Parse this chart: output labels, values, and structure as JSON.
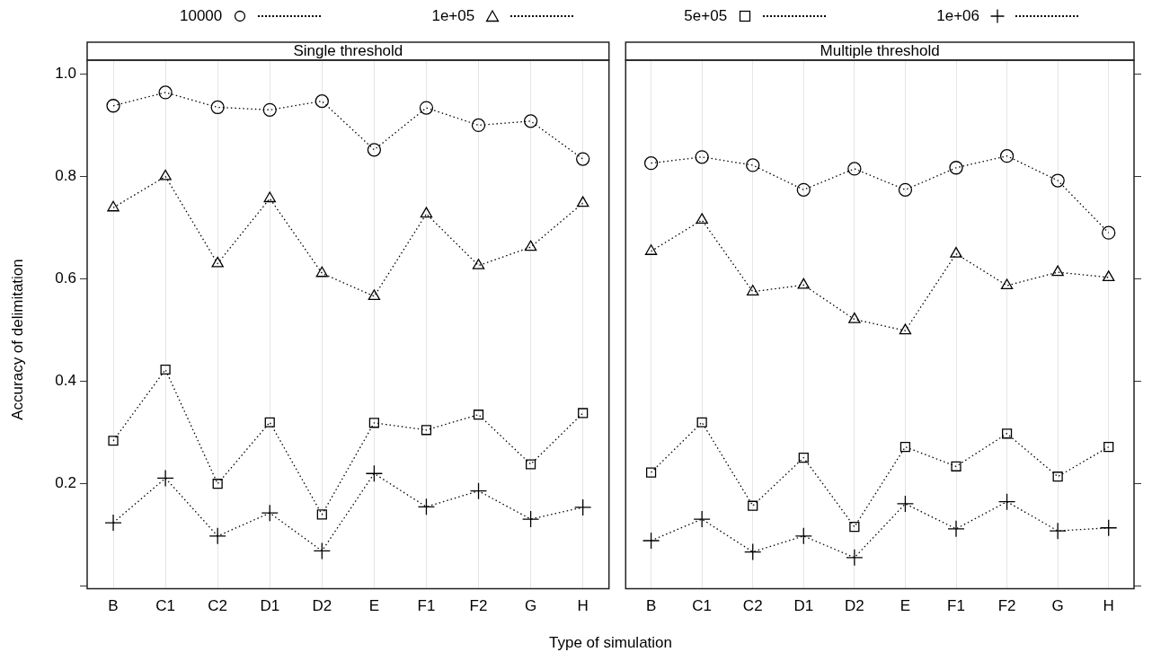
{
  "chart_data": [
    {
      "type": "line",
      "title": "Single threshold",
      "xlabel": "Type of simulation",
      "ylabel": "Accuracy of delimitation",
      "categories": [
        "B",
        "C1",
        "C2",
        "D1",
        "D2",
        "E",
        "F1",
        "F2",
        "G",
        "H"
      ],
      "series": [
        {
          "name": "10000",
          "color": "#000000",
          "marker": "circle",
          "values": [
            0.938,
            0.964,
            0.935,
            0.93,
            0.947,
            0.852,
            0.934,
            0.9,
            0.908,
            0.834
          ]
        },
        {
          "name": "1e+05",
          "color": "#000000",
          "marker": "triangle",
          "values": [
            0.739,
            0.8,
            0.63,
            0.757,
            0.611,
            0.566,
            0.727,
            0.626,
            0.662,
            0.748
          ]
        },
        {
          "name": "5e+05",
          "color": "#000000",
          "marker": "square",
          "values": [
            0.284,
            0.423,
            0.2,
            0.32,
            0.14,
            0.319,
            0.305,
            0.335,
            0.238,
            0.338
          ]
        },
        {
          "name": "1e+06",
          "color": "#000000",
          "marker": "cross",
          "values": [
            0.124,
            0.211,
            0.098,
            0.143,
            0.069,
            0.22,
            0.155,
            0.186,
            0.131,
            0.154
          ]
        }
      ],
      "ylim": [
        -0.005,
        1.027
      ],
      "yticks": [
        {
          "value": 0,
          "label": null
        },
        0.2,
        0.4,
        0.6,
        0.8,
        {
          "value": 1,
          "label": "1.0"
        }
      ],
      "grid": "x",
      "legend": "top",
      "line_style": "dotted"
    },
    {
      "type": "line",
      "title": "Multiple threshold",
      "categories": [
        "B",
        "C1",
        "C2",
        "D1",
        "D2",
        "E",
        "F1",
        "F2",
        "G",
        "H"
      ],
      "series": [
        {
          "color": "#000000",
          "marker": "circle",
          "values": [
            0.826,
            0.838,
            0.822,
            0.774,
            0.815,
            0.774,
            0.817,
            0.84,
            0.792,
            0.69
          ]
        },
        {
          "color": "#000000",
          "marker": "triangle",
          "values": [
            0.654,
            0.715,
            0.575,
            0.588,
            0.521,
            0.499,
            0.649,
            0.587,
            0.613,
            0.603
          ]
        },
        {
          "color": "#000000",
          "marker": "square",
          "values": [
            0.222,
            0.32,
            0.157,
            0.251,
            0.116,
            0.272,
            0.234,
            0.298,
            0.214,
            0.272
          ]
        },
        {
          "color": "#000000",
          "marker": "cross",
          "values": [
            0.089,
            0.131,
            0.067,
            0.098,
            0.056,
            0.161,
            0.112,
            0.165,
            0.108,
            0.114
          ]
        }
      ],
      "ylim": [
        -0.005,
        1.027
      ],
      "yticks": [
        {
          "value": 0,
          "label": null
        },
        {
          "value": 0.2,
          "label": null
        },
        {
          "value": 0.4,
          "label": null
        },
        {
          "value": 0.6,
          "label": null
        },
        {
          "value": 0.8,
          "label": null
        },
        {
          "value": 1,
          "label": null
        }
      ],
      "tick_labels": "x",
      "grid": "x",
      "line_style": "dotted"
    }
  ]
}
